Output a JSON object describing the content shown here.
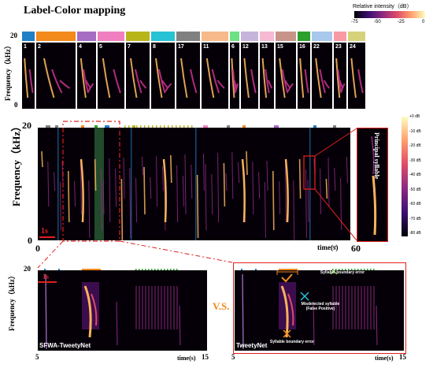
{
  "title": "Label-Color mapping",
  "top_colorbar": {
    "label": "Relative intensity（dB）",
    "ticks": [
      "-75",
      "-50",
      "-25",
      "0"
    ]
  },
  "frequency_axis_label": "Frequency（kHz）",
  "top_axis_ticks": {
    "max": "20",
    "min": "0"
  },
  "syllables": [
    {
      "id": "1",
      "color": "#1f7fc4"
    },
    {
      "id": "2",
      "color": "#f28a1c"
    },
    {
      "id": "4",
      "color": "#a66cc4"
    },
    {
      "id": "5",
      "color": "#f07fc0"
    },
    {
      "id": "7",
      "color": "#b8b51b"
    },
    {
      "id": "8",
      "color": "#27c2d3"
    },
    {
      "id": "17",
      "color": "#808080"
    },
    {
      "id": "11",
      "color": "#f7b98a"
    },
    {
      "id": "6",
      "color": "#6fe083"
    },
    {
      "id": "12",
      "color": "#c7b4dc"
    },
    {
      "id": "13",
      "color": "#f6b8d2"
    },
    {
      "id": "15",
      "color": "#c8948a"
    },
    {
      "id": "16",
      "color": "#2ca02c"
    },
    {
      "id": "22",
      "color": "#a8c8ec"
    },
    {
      "id": "23",
      "color": "#f79aa4"
    },
    {
      "id": "24",
      "color": "#d6d27a"
    }
  ],
  "main": {
    "y_max": "20",
    "y_min": "0",
    "x_start": "0",
    "x_end": "60",
    "x_label": "time(s)",
    "scale_bar": "1s",
    "principal_label": "Principal syllable",
    "colorbar_ticks": [
      "+0 dB",
      "-10 dB",
      "-20 dB",
      "-30 dB",
      "-40 dB",
      "-50 dB",
      "-60 dB",
      "-70 dB",
      "-80 dB"
    ]
  },
  "bottom_left": {
    "name": "SFWA-TweetyNet",
    "y_max": "20",
    "x_start": "5",
    "x_end": "15",
    "x_label": "time(s)",
    "scale_bar": "1s"
  },
  "vs": "V.S.",
  "bottom_right": {
    "name": "TweetyNet",
    "x_start": "5",
    "x_end": "15",
    "x_label": "time(s)",
    "boundary_error_top": "Syllable boundary error",
    "misdetected": "Misdetected syllable\n(False Positive)",
    "boundary_error_bottom": "Syllable boundary error"
  }
}
